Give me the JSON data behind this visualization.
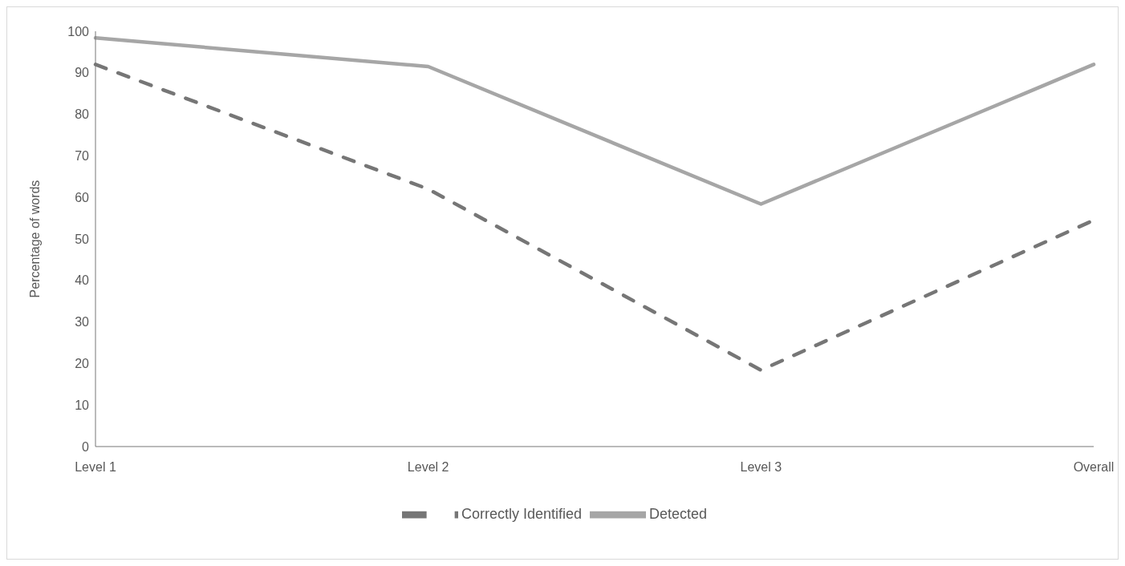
{
  "chart_data": {
    "type": "line",
    "ylabel": "Percentage of words",
    "categories": [
      "Level 1",
      "Level 2",
      "Level 3",
      "Overall"
    ],
    "series": [
      {
        "name": "Detected",
        "color": "#a6a6a6",
        "values": [
          98.4,
          91.5,
          58.4,
          92
        ],
        "line_style": "solid"
      },
      {
        "name": "Correctly Identified",
        "color": "#767676",
        "values": [
          92,
          62,
          18.4,
          54.5
        ],
        "line_style": "dashed"
      }
    ],
    "ylim": [
      0,
      100
    ],
    "yticks": [
      0,
      10,
      20,
      30,
      40,
      50,
      60,
      70,
      80,
      90,
      100
    ],
    "grid": false,
    "legend": "bottom",
    "marker": "none"
  }
}
